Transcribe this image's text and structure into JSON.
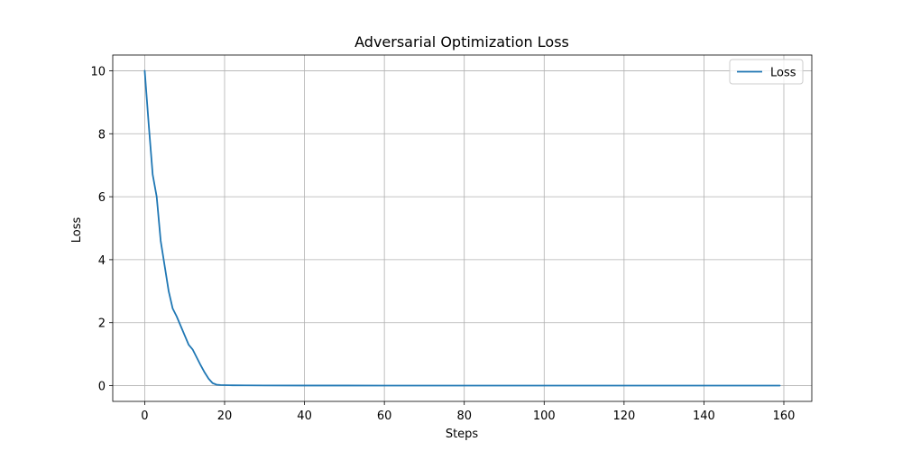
{
  "chart_data": {
    "type": "line",
    "title": "Adversarial Optimization Loss",
    "xlabel": "Steps",
    "ylabel": "Loss",
    "xlim": [
      -8,
      167
    ],
    "ylim": [
      -0.5,
      10.5
    ],
    "xticks": [
      0,
      20,
      40,
      60,
      80,
      100,
      120,
      140,
      160
    ],
    "yticks": [
      0,
      2,
      4,
      6,
      8,
      10
    ],
    "grid": true,
    "legend_position": "top-right",
    "series": [
      {
        "name": "Loss",
        "color": "#1f77b4",
        "x": [
          0,
          1,
          2,
          3,
          4,
          5,
          6,
          7,
          8,
          9,
          10,
          11,
          12,
          13,
          14,
          15,
          16,
          17,
          18,
          19,
          20,
          22,
          25,
          30,
          40,
          60,
          80,
          100,
          120,
          140,
          159
        ],
        "y": [
          10.0,
          8.3,
          6.7,
          6.0,
          4.6,
          3.8,
          3.0,
          2.45,
          2.2,
          1.9,
          1.6,
          1.3,
          1.15,
          0.9,
          0.65,
          0.42,
          0.22,
          0.08,
          0.03,
          0.02,
          0.015,
          0.01,
          0.008,
          0.005,
          0.003,
          0.002,
          0.002,
          0.001,
          0.001,
          0.001,
          0.001
        ]
      }
    ]
  }
}
